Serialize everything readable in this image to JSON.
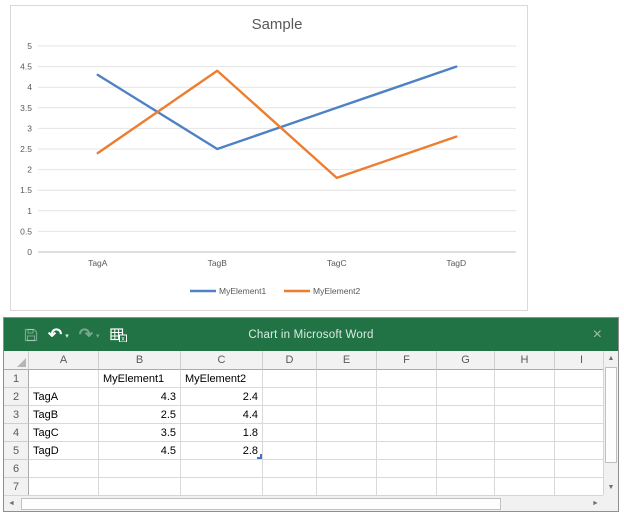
{
  "chart_data": {
    "type": "line",
    "title": "Sample",
    "categories": [
      "TagA",
      "TagB",
      "TagC",
      "TagD"
    ],
    "series": [
      {
        "name": "MyElement1",
        "values": [
          4.3,
          2.5,
          3.5,
          4.5
        ],
        "color": "#4e82c4"
      },
      {
        "name": "MyElement2",
        "values": [
          2.4,
          4.4,
          1.8,
          2.8
        ],
        "color": "#ed7d31"
      }
    ],
    "ylim": [
      0,
      5
    ],
    "ytick_step": 0.5,
    "grid": true,
    "legend_position": "bottom",
    "text_color": "#595959",
    "grid_color": "#e4e4e4",
    "axis_color": "#bfbfbf"
  },
  "excel_window": {
    "title": "Chart in Microsoft Word",
    "titlebar_color": "#217346",
    "qat": {
      "save": {
        "icon": "save-icon"
      },
      "undo": {
        "icon": "undo-icon",
        "glyph": "↶",
        "caret": "▾"
      },
      "redo": {
        "icon": "redo-icon",
        "glyph": "↷",
        "caret": "▾"
      },
      "edit_data": {
        "icon": "edit-data-in-excel-icon"
      }
    },
    "close": {
      "icon": "close-icon",
      "glyph": "×"
    }
  },
  "spreadsheet": {
    "column_headers": [
      "A",
      "B",
      "C",
      "D",
      "E",
      "F",
      "G",
      "H",
      "I"
    ],
    "rows": [
      {
        "num": "1",
        "cells": [
          "",
          "MyElement1",
          "MyElement2"
        ]
      },
      {
        "num": "2",
        "cells": [
          "TagA",
          "4.3",
          "2.4"
        ]
      },
      {
        "num": "3",
        "cells": [
          "TagB",
          "2.5",
          "4.4"
        ]
      },
      {
        "num": "4",
        "cells": [
          "TagC",
          "3.5",
          "1.8"
        ]
      },
      {
        "num": "5",
        "cells": [
          "TagD",
          "4.5",
          "2.8"
        ]
      },
      {
        "num": "6",
        "cells": []
      },
      {
        "num": "7",
        "cells": []
      }
    ],
    "range_end": {
      "row": "5",
      "col": "C"
    }
  },
  "scrollbars": {
    "up": "▲",
    "down": "▼",
    "left": "◄",
    "right": "►"
  }
}
